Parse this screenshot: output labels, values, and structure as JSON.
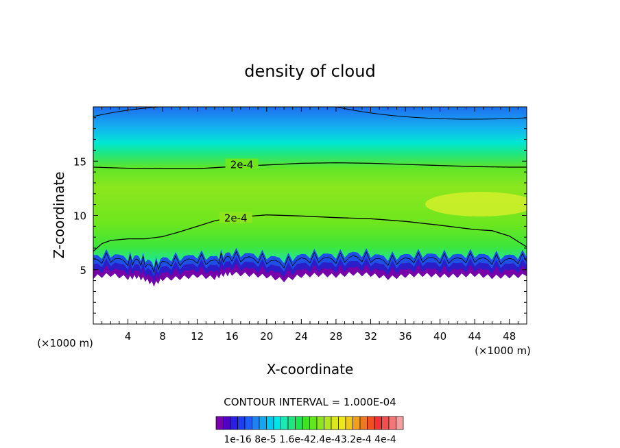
{
  "chart_data": {
    "type": "contour",
    "title": "density of cloud",
    "xlabel": "X-coordinate",
    "ylabel": "Z-coordinate",
    "x_unit_left": "(×1000 m)",
    "x_unit_right": "(×1000 m)",
    "xlim": [
      0,
      50
    ],
    "ylim": [
      0,
      20
    ],
    "x_ticks": [
      4,
      8,
      12,
      16,
      20,
      24,
      28,
      32,
      36,
      40,
      44,
      48
    ],
    "y_ticks": [
      5,
      10,
      15
    ],
    "contour_interval_text": "CONTOUR INTERVAL = 1.000E-04",
    "contour_labels": [
      {
        "text": "2e-4",
        "x": 16.5,
        "z": 14.6
      },
      {
        "text": "2e-4",
        "x": 15.8,
        "z": 9.7
      }
    ],
    "upper_contour_2e4": [
      [
        0,
        14.45
      ],
      [
        4,
        14.35
      ],
      [
        8,
        14.3
      ],
      [
        12,
        14.3
      ],
      [
        16,
        14.5
      ],
      [
        20,
        14.65
      ],
      [
        24,
        14.8
      ],
      [
        28,
        14.85
      ],
      [
        32,
        14.8
      ],
      [
        36,
        14.7
      ],
      [
        40,
        14.6
      ],
      [
        44,
        14.5
      ],
      [
        48,
        14.45
      ],
      [
        50,
        14.45
      ]
    ],
    "lower_contour_2e4": [
      [
        0,
        6.7
      ],
      [
        1,
        7.4
      ],
      [
        2,
        7.7
      ],
      [
        4,
        7.85
      ],
      [
        6,
        7.85
      ],
      [
        8,
        8.05
      ],
      [
        10,
        8.5
      ],
      [
        12,
        9.0
      ],
      [
        14,
        9.5
      ],
      [
        16,
        9.8
      ],
      [
        20,
        10.05
      ],
      [
        24,
        9.95
      ],
      [
        28,
        9.8
      ],
      [
        32,
        9.7
      ],
      [
        36,
        9.45
      ],
      [
        40,
        9.1
      ],
      [
        44,
        8.7
      ],
      [
        46,
        8.6
      ],
      [
        48,
        8.1
      ],
      [
        50,
        7.1
      ]
    ],
    "cloud_base_profile": [
      [
        0,
        4.3
      ],
      [
        2,
        4.5
      ],
      [
        4,
        4.2
      ],
      [
        5,
        4.3
      ],
      [
        6,
        4.05
      ],
      [
        7,
        3.6
      ],
      [
        8,
        4.1
      ],
      [
        10,
        4.2
      ],
      [
        12,
        4.4
      ],
      [
        14,
        4.2
      ],
      [
        15,
        4.5
      ],
      [
        16,
        4.6
      ],
      [
        18,
        4.5
      ],
      [
        20,
        4.35
      ],
      [
        22,
        4.0
      ],
      [
        24,
        4.4
      ],
      [
        26,
        4.5
      ],
      [
        28,
        4.4
      ],
      [
        30,
        4.6
      ],
      [
        32,
        4.5
      ],
      [
        34,
        4.2
      ],
      [
        36,
        4.4
      ],
      [
        38,
        4.5
      ],
      [
        40,
        4.4
      ],
      [
        42,
        4.4
      ],
      [
        44,
        4.5
      ],
      [
        46,
        4.3
      ],
      [
        48,
        4.35
      ],
      [
        50,
        4.4
      ]
    ],
    "colorbar": {
      "colors": [
        "#7a00a8",
        "#5200c8",
        "#2a1ee6",
        "#1e3cf0",
        "#1e5ef0",
        "#1e82f0",
        "#14a6f0",
        "#00c8f0",
        "#00e6e6",
        "#1ee6b4",
        "#1ee682",
        "#1ee650",
        "#3ce61e",
        "#64e61e",
        "#8ce61e",
        "#b4e61e",
        "#dce61e",
        "#f0e61e",
        "#f0c81e",
        "#f0a01e",
        "#f0781e",
        "#f0501e",
        "#f03232",
        "#f05050",
        "#f07878",
        "#f0a0a0"
      ],
      "labels": [
        "1e-16",
        "8e-5",
        "1.6e-4",
        "2.4e-4",
        "3.2e-4",
        "4e-4"
      ],
      "label_text": "1e-16 8e-5 1.6e-42.4e-43.2e-4 4e-4"
    }
  }
}
